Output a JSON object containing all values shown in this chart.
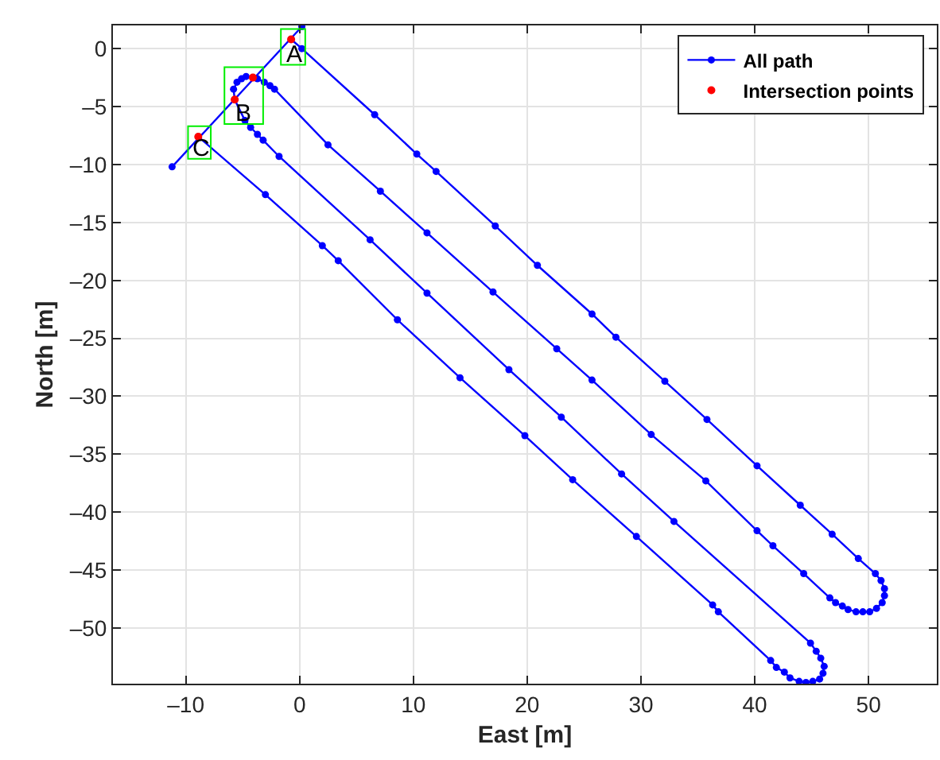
{
  "chart_data": {
    "type": "line",
    "xlabel": "East [m]",
    "ylabel": "North [m]",
    "xlim": [
      -16.4,
      56
    ],
    "ylim": [
      -54.8,
      2
    ],
    "xticks": [
      {
        "value": -10,
        "label": "–10"
      },
      0,
      10,
      20,
      30,
      40,
      50
    ],
    "yticks": [
      {
        "value": -50,
        "label": "–50"
      },
      {
        "value": -45,
        "label": "–45"
      },
      {
        "value": -40,
        "label": "–40"
      },
      {
        "value": -35,
        "label": "–35"
      },
      {
        "value": -30,
        "label": "–30"
      },
      {
        "value": -25,
        "label": "–25"
      },
      {
        "value": -20,
        "label": "–20"
      },
      {
        "value": -15,
        "label": "–15"
      },
      {
        "value": -10,
        "label": "–10"
      },
      {
        "value": -5,
        "label": "–5"
      },
      0
    ],
    "grid": true,
    "legend": "top right",
    "marker": "circle",
    "line_style": "solid",
    "series": [
      {
        "name": "All path",
        "color": "#0000ff",
        "x": [
          -11.2,
          0.2,
          null,
          -0.74,
          0.2,
          6.6,
          10.3,
          12.0,
          17.2,
          20.9,
          25.7,
          27.8,
          32.1,
          35.8,
          40.2,
          44.0,
          46.8,
          49.1,
          50.6,
          51.1,
          51.4,
          51.4,
          51.2,
          50.7,
          50.1,
          49.5,
          48.9,
          48.2,
          47.7,
          47.1,
          46.6,
          44.3,
          41.6,
          40.2,
          35.7,
          30.9,
          25.7,
          22.6,
          17.0,
          11.2,
          7.1,
          2.5,
          -2.2,
          -2.6,
          -3.1,
          -3.7,
          -4.1,
          -4.7,
          -5.1,
          -5.5,
          -5.8,
          -5.7,
          -4.8,
          -4.3,
          -3.7,
          -3.2,
          -1.8,
          6.2,
          11.2,
          18.4,
          23.0,
          28.3,
          32.9,
          44.9,
          45.4,
          45.8,
          46.1,
          46.0,
          45.7,
          45.1,
          44.5,
          43.9,
          43.1,
          42.6,
          41.9,
          41.4,
          36.8,
          36.3,
          29.6,
          24.0,
          19.8,
          14.1,
          8.6,
          3.4,
          2.0,
          -3.0,
          -8.9
        ],
        "values": [
          -10.2,
          1.9,
          null,
          0.8,
          0.0,
          -5.7,
          -9.1,
          -10.6,
          -15.3,
          -18.7,
          -22.9,
          -24.9,
          -28.7,
          -32.0,
          -36.0,
          -39.4,
          -41.9,
          -44.0,
          -45.3,
          -45.9,
          -46.6,
          -47.2,
          -47.8,
          -48.3,
          -48.6,
          -48.6,
          -48.6,
          -48.4,
          -48.1,
          -47.8,
          -47.4,
          -45.3,
          -42.9,
          -41.6,
          -37.3,
          -33.3,
          -28.6,
          -25.9,
          -21.0,
          -15.9,
          -12.3,
          -8.3,
          -3.5,
          -3.2,
          -2.9,
          -2.6,
          -2.5,
          -2.4,
          -2.6,
          -2.9,
          -3.5,
          -4.4,
          -6.2,
          -6.8,
          -7.4,
          -7.9,
          -9.3,
          -16.5,
          -21.1,
          -27.7,
          -31.8,
          -36.7,
          -40.8,
          -51.3,
          -52.0,
          -52.6,
          -53.3,
          -53.9,
          -54.4,
          -54.6,
          -54.7,
          -54.6,
          -54.3,
          -53.8,
          -53.4,
          -52.8,
          -48.6,
          -48.0,
          -42.1,
          -37.2,
          -33.4,
          -28.4,
          -23.4,
          -18.3,
          -17.0,
          -12.6,
          -7.6
        ]
      },
      {
        "name": "Intersection points",
        "type": "scatter",
        "color": "#ff0000",
        "x": [
          -0.74,
          -4.1,
          -5.7,
          -8.9
        ],
        "values": [
          0.8,
          -2.5,
          -4.4,
          -7.6
        ]
      }
    ],
    "annotations": [
      {
        "text": "A",
        "x": -0.4,
        "y": -0.5
      },
      {
        "text": "B",
        "x": -5.0,
        "y": -5.6
      },
      {
        "text": "C",
        "x": -8.7,
        "y": -8.6
      }
    ]
  }
}
